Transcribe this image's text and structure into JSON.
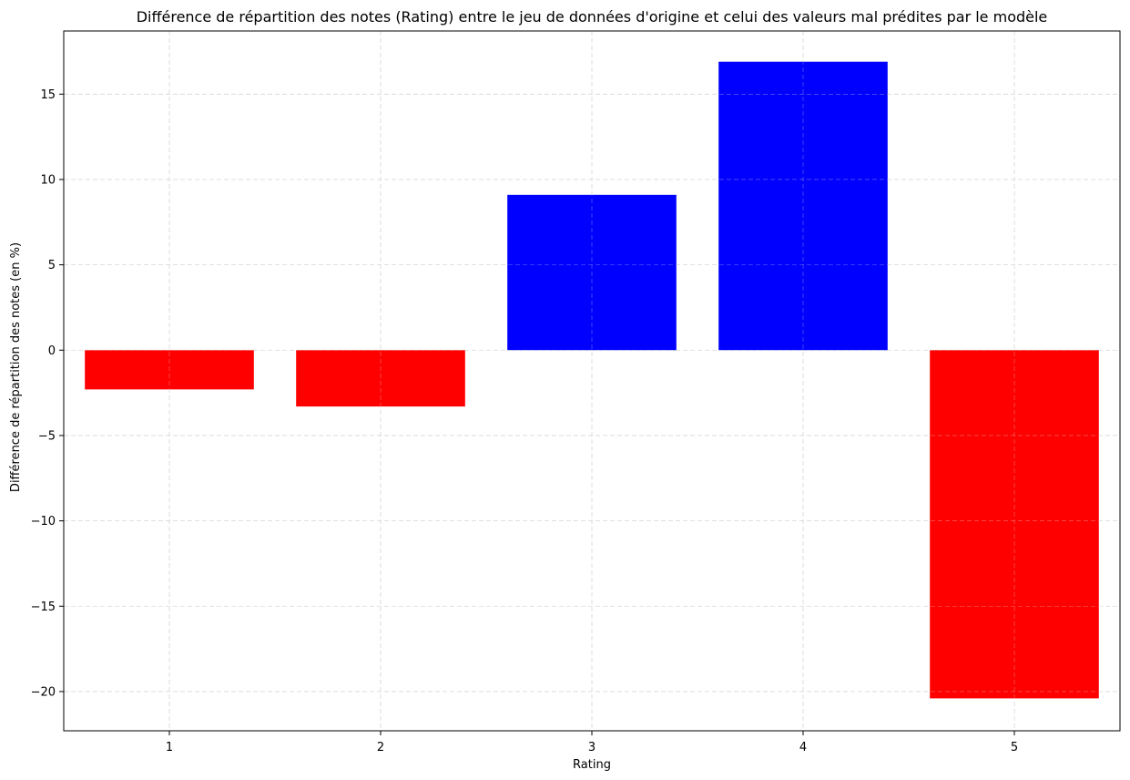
{
  "chart_data": {
    "type": "bar",
    "title": "Différence de répartition des notes (Rating) entre le jeu de données d'origine et celui des valeurs mal prédites par le modèle",
    "xlabel": "Rating",
    "ylabel": "Différence de répartition des notes (en %)",
    "categories": [
      "1",
      "2",
      "3",
      "4",
      "5"
    ],
    "values": [
      -2.3,
      -3.3,
      9.1,
      16.9,
      -20.4
    ],
    "ylim": [
      -22.3,
      18.7
    ],
    "yticks": [
      -20,
      -15,
      -10,
      -5,
      0,
      5,
      10,
      15
    ],
    "ytick_labels": [
      "−20",
      "−15",
      "−10",
      "−5",
      "0",
      "5",
      "10",
      "15"
    ],
    "grid": true,
    "colors": {
      "positive": "#0000ff",
      "negative": "#ff0000",
      "grid": "#d9d9d9",
      "axis": "#000000"
    }
  }
}
